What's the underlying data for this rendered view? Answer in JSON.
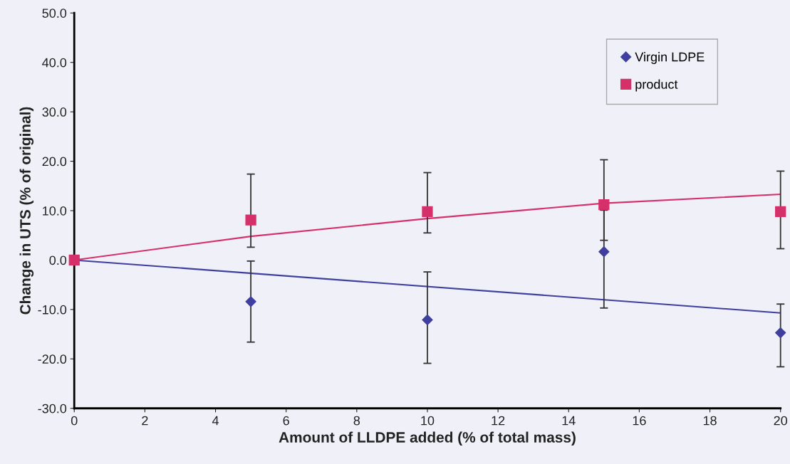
{
  "chart_data": {
    "type": "scatter",
    "xlabel": "Amount of LLDPE added (% of total mass)",
    "ylabel": "Change in UTS (% of original)",
    "xlim": [
      0,
      20
    ],
    "xticks": [
      0,
      2,
      4,
      6,
      8,
      10,
      12,
      14,
      16,
      18,
      20
    ],
    "ylim": [
      -30,
      50
    ],
    "yticks": [
      {
        "value": -30,
        "label": "-30.0"
      },
      {
        "value": -20,
        "label": "-20.0"
      },
      {
        "value": -10,
        "label": "-10.0"
      },
      {
        "value": 0,
        "label": "0.0"
      },
      {
        "value": 10,
        "label": "10.0"
      },
      {
        "value": 20,
        "label": "20.0"
      },
      {
        "value": 30,
        "label": "30.0"
      },
      {
        "value": 40,
        "label": "40.0"
      },
      {
        "value": 50,
        "label": "50.0"
      }
    ],
    "grid": false,
    "legend": "top right",
    "series": [
      {
        "name": "Virgin LDPE",
        "marker": "diamond",
        "color": "#3f3f9f",
        "x": [
          5,
          10,
          15,
          20
        ],
        "values": [
          -8.4,
          -12.1,
          1.7,
          -14.7
        ],
        "errors": [
          [
            -16.6,
            -0.2
          ],
          [
            -20.9,
            -2.4
          ],
          [
            -9.7,
            10.1
          ],
          [
            -21.6,
            -8.9
          ]
        ]
      },
      {
        "name": "product",
        "marker": "square",
        "color": "#d6306a",
        "x": [
          0,
          5,
          10,
          15,
          20
        ],
        "values": [
          0,
          8.1,
          9.8,
          11.2,
          9.8
        ],
        "errors": [
          null,
          [
            2.6,
            17.4
          ],
          [
            5.5,
            17.7
          ],
          [
            4.0,
            20.3
          ],
          [
            2.3,
            18.0
          ]
        ]
      },
      {
        "type": "line",
        "marker": "none",
        "line_style": "solid",
        "color": "#3f3f9f",
        "x": [
          0,
          20
        ],
        "values": [
          0,
          -10.7
        ]
      },
      {
        "type": "line",
        "marker": "none",
        "line_style": "solid",
        "color": "#d6306a",
        "x": [
          0,
          5,
          10,
          15,
          20
        ],
        "values": [
          0,
          4.8,
          8.4,
          11.5,
          13.3
        ]
      }
    ]
  }
}
